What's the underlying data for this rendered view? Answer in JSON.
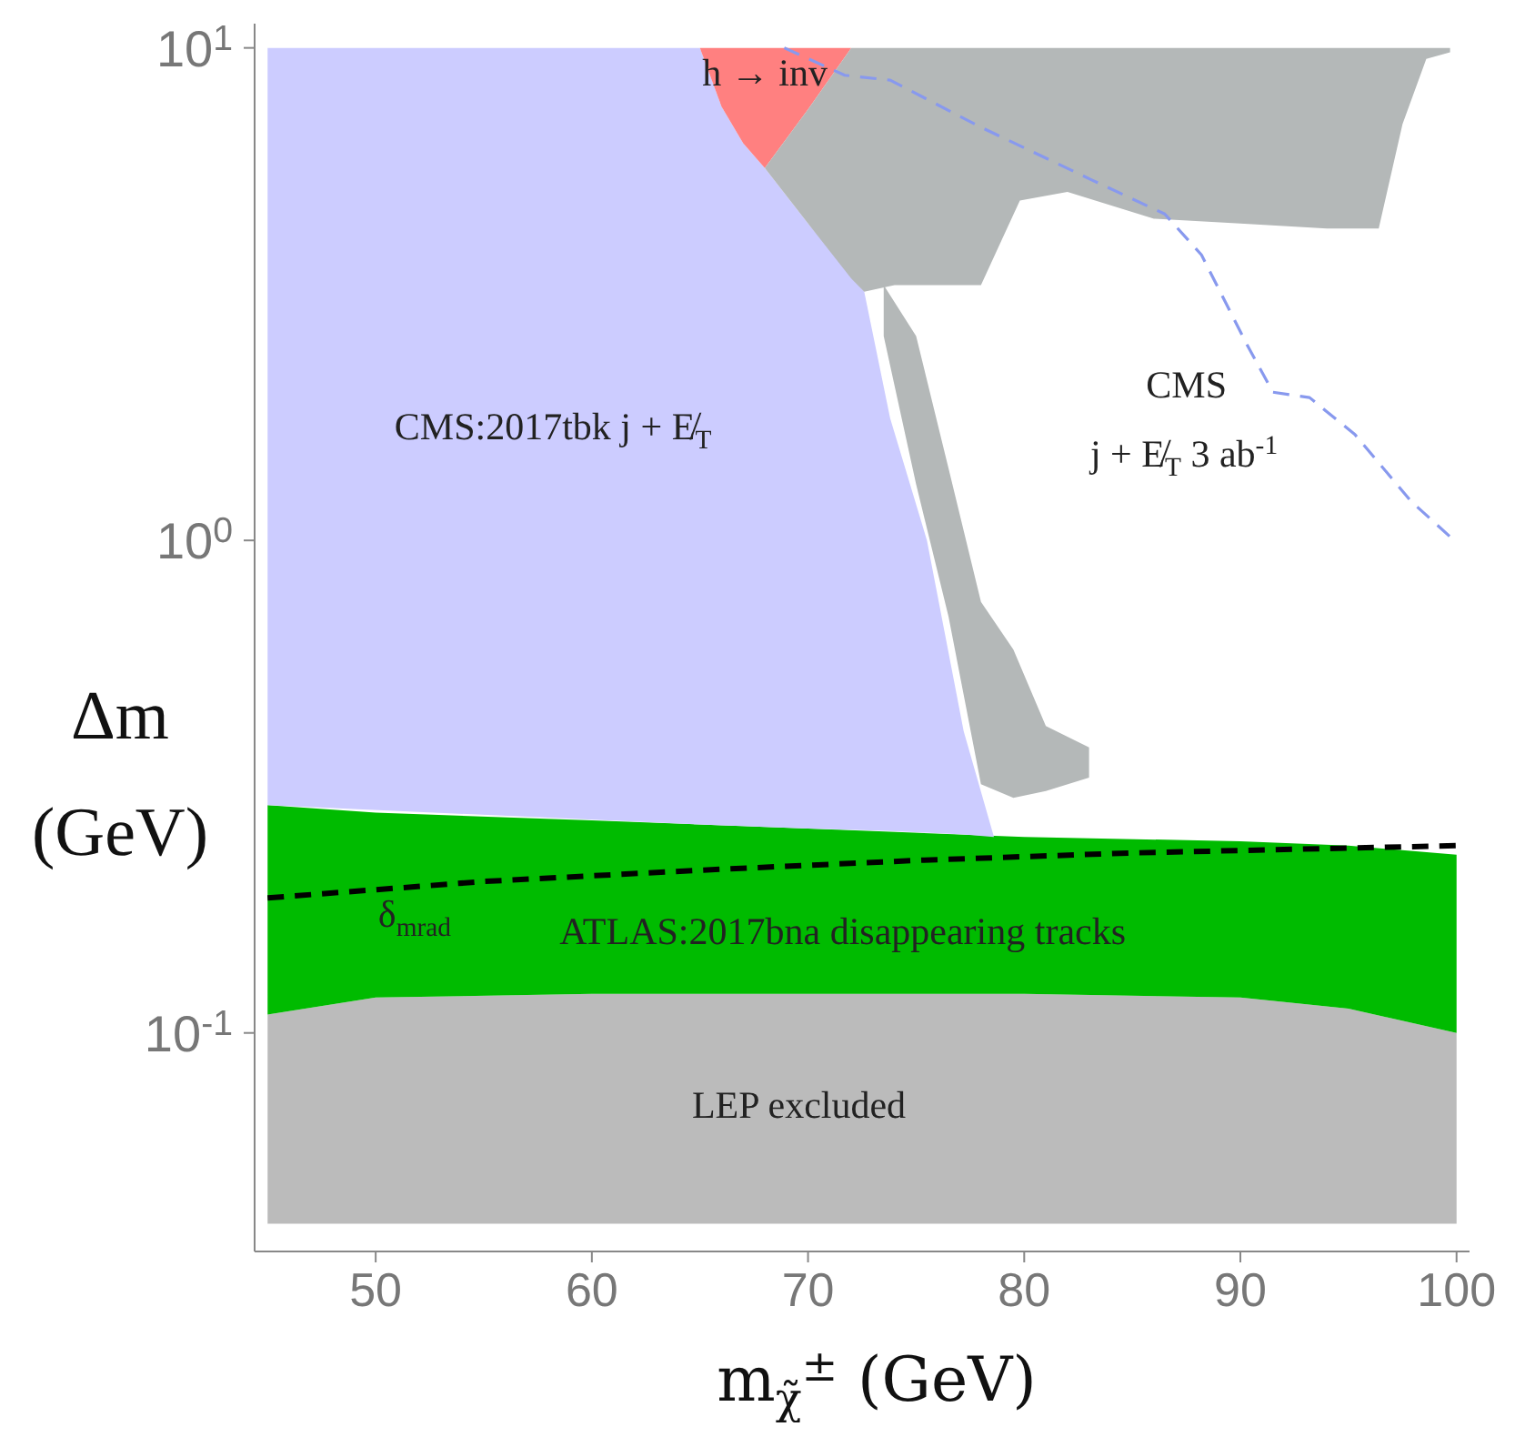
{
  "chart_data": {
    "type": "area",
    "xlabel": "m$_{χ̃}$$^{±}$ (GeV)",
    "ylabel": "Δm (GeV)",
    "log": "y",
    "xlim": [
      44.4,
      100.6
    ],
    "ylim": [
      0.036,
      11.2
    ],
    "xticks": [
      50,
      60,
      70,
      80,
      90,
      100
    ],
    "yticks": [
      {
        "value": 0.1,
        "label": "10$^{-1}$"
      },
      {
        "value": 1,
        "label": "10$^{0}$"
      },
      {
        "value": 10,
        "label": "10$^{1}$"
      }
    ],
    "series": [
      {
        "color": "#bbbbbb",
        "x": [
          45,
          50,
          60,
          70,
          80,
          90,
          95,
          100
        ],
        "values": [
          null,
          null,
          null,
          null,
          null,
          null,
          null,
          null
        ],
        "lower": [
          0.041,
          0.041,
          0.041,
          0.041,
          0.041,
          0.041,
          0.041,
          0.041
        ],
        "upper": [
          0.109,
          0.118,
          0.12,
          0.12,
          0.12,
          0.118,
          0.112,
          0.1
        ]
      },
      {
        "color": "#00bb00",
        "x": [
          45,
          50,
          60,
          70,
          80,
          90,
          95,
          100
        ],
        "values": [
          null,
          null,
          null,
          null,
          null,
          null,
          null,
          null
        ],
        "lower": [
          0.109,
          0.118,
          0.12,
          0.12,
          0.12,
          0.118,
          0.112,
          0.1
        ],
        "upper": [
          0.29,
          0.28,
          0.27,
          0.26,
          0.25,
          0.245,
          0.24,
          0.23
        ]
      },
      {
        "color": "#ccccff",
        "x": [
          45,
          65,
          66,
          67,
          68,
          70,
          72.6,
          73.8,
          75.5,
          77.2,
          78.6
        ],
        "values": [
          null,
          null,
          null,
          null,
          null,
          null,
          null,
          null,
          null,
          null,
          null
        ],
        "lower": [
          0.29,
          0.265,
          0.264,
          0.263,
          0.262,
          0.26,
          0.258,
          0.257,
          0.255,
          0.253,
          0.25
        ],
        "upper": [
          10,
          10,
          7.6,
          6.4,
          5.7,
          4.4,
          3.2,
          1.77,
          1.0,
          0.41,
          0.25
        ]
      },
      {
        "color": "#ff8080",
        "x": [
          65,
          66,
          67,
          68,
          70,
          72
        ],
        "values": [
          null,
          null,
          null,
          null,
          null,
          null
        ],
        "lower": [
          10,
          7.6,
          6.4,
          5.7,
          7.5,
          10
        ],
        "upper": [
          10,
          10,
          10,
          10,
          10,
          10
        ]
      },
      {
        "color": "#b4b8b8",
        "x": [
          68,
          70,
          72,
          72.6,
          74,
          76,
          78,
          79.8,
          82,
          86,
          90,
          94,
          96.4,
          97.5,
          98.6,
          99.7
        ],
        "values": [
          null,
          null,
          null,
          null,
          null,
          null,
          null,
          null,
          null,
          null,
          null,
          null,
          null,
          null,
          null,
          null
        ],
        "lower": [
          5.7,
          4.4,
          3.4,
          3.2,
          3.3,
          3.3,
          3.3,
          4.9,
          5.1,
          4.5,
          4.4,
          4.3,
          4.3,
          7,
          9.5,
          9.8
        ],
        "upper": [
          5.7,
          7.5,
          10,
          10,
          10,
          10,
          10,
          10,
          10,
          10,
          10,
          10,
          10,
          10,
          10,
          10
        ]
      },
      {
        "color": "#b4b8b8",
        "x": [
          73.5,
          75,
          76.5,
          78,
          79.5,
          81,
          83
        ],
        "values": [
          null,
          null,
          null,
          null,
          null,
          null,
          null
        ],
        "lower": [
          2.6,
          1.3,
          0.7,
          0.32,
          0.3,
          0.31,
          0.33
        ],
        "upper": [
          3.3,
          2.6,
          1.4,
          0.75,
          0.6,
          0.42,
          0.38
        ]
      },
      {
        "type": "line",
        "color": "#8899ee",
        "line_style": "dashed",
        "x": [
          68.9,
          71.7,
          73.8,
          78,
          83.1,
          86.5,
          88.2,
          90.3,
          91.5,
          93.2,
          95.3,
          97.9,
          100
        ],
        "values": [
          10,
          8.8,
          8.6,
          6.9,
          5.4,
          4.6,
          3.8,
          2.5,
          2.0,
          1.95,
          1.64,
          1.2,
          0.99
        ]
      },
      {
        "type": "line",
        "color": "#000000",
        "line_style": "dashed",
        "x": [
          45,
          55,
          65,
          75,
          85,
          100
        ],
        "values": [
          0.188,
          0.203,
          0.214,
          0.224,
          0.232,
          0.24
        ]
      }
    ],
    "annotations": [
      "CMS:2017tbk j + E̸$_{T}$",
      "CMS",
      "j + E̸$_{T}$ 3 ab$^{-1}$",
      "h → inv",
      {
        "text": "δ$_{mrad}$",
        "x": 51.8,
        "y": 0.198
      },
      "ATLAS:2017bna disappearing tracks",
      "LEP excluded"
    ]
  }
}
